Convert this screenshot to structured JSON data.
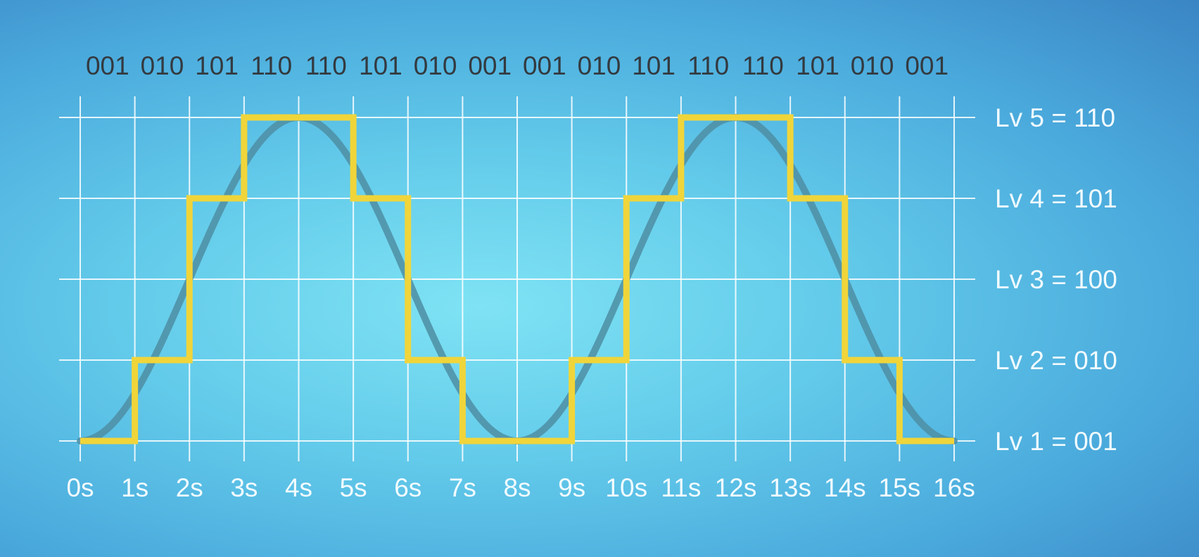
{
  "chart_data": {
    "type": "line",
    "x_ticks": [
      "0s",
      "1s",
      "2s",
      "3s",
      "4s",
      "5s",
      "6s",
      "7s",
      "8s",
      "9s",
      "10s",
      "11s",
      "12s",
      "13s",
      "14s",
      "15s",
      "16s"
    ],
    "xlim": [
      0,
      16
    ],
    "ylim": [
      1,
      5
    ],
    "grid": true,
    "levels": [
      {
        "level": 5,
        "label": "Lv 5 = 110"
      },
      {
        "level": 4,
        "label": "Lv 4 = 101"
      },
      {
        "level": 3,
        "label": "Lv 3 = 100"
      },
      {
        "level": 2,
        "label": "Lv 2 = 010"
      },
      {
        "level": 1,
        "label": "Lv 1 = 001"
      }
    ],
    "codes": [
      "001",
      "010",
      "101",
      "110",
      "110",
      "101",
      "010",
      "001",
      "001",
      "010",
      "101",
      "110",
      "110",
      "101",
      "010",
      "001"
    ],
    "series": [
      {
        "kind": "analog",
        "color": "#4d8ea3",
        "function": "cosine",
        "period_s": 8,
        "min_level": 1,
        "max_level": 5,
        "minima_at_s": [
          0,
          8,
          16
        ],
        "maxima_at_s": [
          4,
          12
        ]
      },
      {
        "kind": "quantized-steps",
        "color": "#f0d53a",
        "step_levels": [
          1,
          2,
          4,
          5,
          5,
          4,
          2,
          1,
          1,
          2,
          4,
          5,
          5,
          4,
          2,
          1
        ]
      }
    ]
  }
}
